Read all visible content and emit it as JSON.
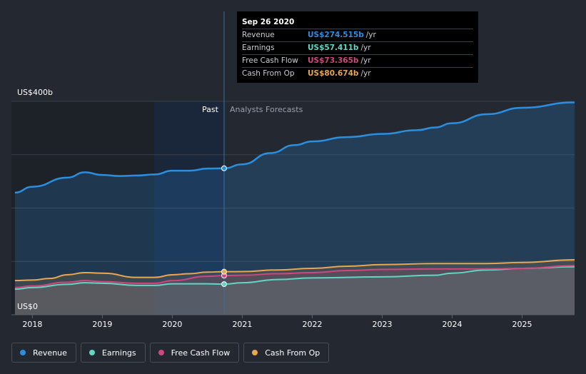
{
  "chart_data": {
    "type": "area",
    "y_axis": {
      "top_label": "US$400b",
      "bottom_label": "US$0",
      "ylim": [
        0,
        400
      ]
    },
    "x_axis": {
      "ticks": [
        "2018",
        "2019",
        "2020",
        "2021",
        "2022",
        "2023",
        "2024",
        "2025"
      ]
    },
    "xlim": [
      2017.7,
      2025.75
    ],
    "regions": {
      "past_label": "Past",
      "forecast_label": "Analysts Forecasts",
      "divider_x": 2020.74,
      "highlight_start_x": 2019.74
    },
    "series": [
      {
        "name": "Revenue",
        "color": "#2b8fe0",
        "x": [
          2017.75,
          2018.0,
          2018.5,
          2018.75,
          2019.0,
          2019.25,
          2019.5,
          2019.75,
          2020.0,
          2020.25,
          2020.5,
          2020.74,
          2021.0,
          2021.4,
          2021.75,
          2022.0,
          2022.5,
          2023.0,
          2023.5,
          2023.75,
          2024.0,
          2024.5,
          2025.0,
          2025.75
        ],
        "values": [
          229,
          240,
          257,
          267,
          262,
          260,
          261,
          263,
          270,
          270,
          274,
          274.5,
          282,
          303,
          318,
          325,
          333,
          339,
          346,
          351,
          359,
          376,
          388,
          398
        ]
      },
      {
        "name": "Earnings",
        "color": "#62d6c5",
        "x": [
          2017.75,
          2018.0,
          2018.5,
          2018.75,
          2019.0,
          2019.5,
          2019.75,
          2020.0,
          2020.5,
          2020.74,
          2021.0,
          2021.5,
          2022.0,
          2023.0,
          2023.75,
          2024.0,
          2024.5,
          2025.0,
          2025.75
        ],
        "values": [
          48,
          51,
          57,
          60,
          59,
          55,
          55,
          58,
          58,
          57.4,
          60,
          66,
          69,
          71,
          74,
          78,
          84,
          87,
          90
        ]
      },
      {
        "name": "Free Cash Flow",
        "color": "#d1467f",
        "x": [
          2017.75,
          2018.0,
          2018.5,
          2018.75,
          2019.0,
          2019.5,
          2019.75,
          2020.0,
          2020.5,
          2020.74,
          2021.0,
          2021.5,
          2022.0,
          2022.5,
          2023.0,
          2023.75,
          2024.0,
          2024.5,
          2025.0,
          2025.75
        ],
        "values": [
          51,
          54,
          61,
          64,
          62,
          59,
          59,
          64,
          72,
          73.4,
          74,
          77,
          79,
          83,
          85,
          86,
          86,
          86,
          87,
          92
        ]
      },
      {
        "name": "Cash From Op",
        "color": "#e8a750",
        "x": [
          2017.75,
          2018.0,
          2018.25,
          2018.5,
          2018.75,
          2019.0,
          2019.5,
          2019.75,
          2020.0,
          2020.25,
          2020.5,
          2020.74,
          2021.0,
          2021.5,
          2022.0,
          2022.5,
          2023.0,
          2023.75,
          2024.0,
          2024.5,
          2025.0,
          2025.75
        ],
        "values": [
          64,
          65,
          68,
          75,
          79,
          78,
          70,
          70,
          75,
          77,
          80,
          80.7,
          81,
          84,
          87,
          91,
          94,
          96,
          96,
          96,
          98,
          103
        ]
      }
    ]
  },
  "tooltip": {
    "date": "Sep 26 2020",
    "rows": [
      {
        "name": "Revenue",
        "value": "US$274.515b",
        "unit": "/yr",
        "color": "#2b8fe0"
      },
      {
        "name": "Earnings",
        "value": "US$57.411b",
        "unit": "/yr",
        "color": "#62d6c5"
      },
      {
        "name": "Free Cash Flow",
        "value": "US$73.365b",
        "unit": "/yr",
        "color": "#d1467f"
      },
      {
        "name": "Cash From Op",
        "value": "US$80.674b",
        "unit": "/yr",
        "color": "#e8a750"
      }
    ]
  },
  "legend": [
    {
      "label": "Revenue",
      "color": "#2b8fe0"
    },
    {
      "label": "Earnings",
      "color": "#62d6c5"
    },
    {
      "label": "Free Cash Flow",
      "color": "#d1467f"
    },
    {
      "label": "Cash From Op",
      "color": "#e8a750"
    }
  ]
}
